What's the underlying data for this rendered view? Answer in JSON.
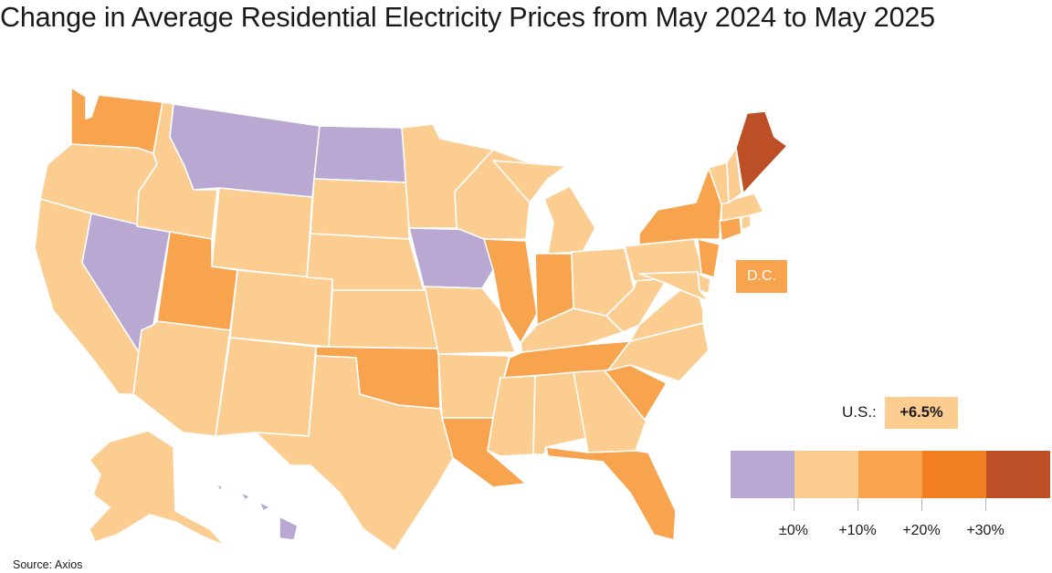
{
  "title": "Change in Average Residential Electricity Prices from May 2024 to May 2025",
  "colors": {
    "decrease": "#b9a8d1",
    "low": "#fccd91",
    "mid": "#f8a44e",
    "high": "#f17f22",
    "top": "#bc4f26"
  },
  "bins": [
    "decrease",
    "low",
    "mid",
    "high",
    "top"
  ],
  "state_bins": {
    "WA": "mid",
    "OR": "low",
    "CA": "low",
    "NV": "decrease",
    "ID": "low",
    "MT": "decrease",
    "WY": "low",
    "UT": "mid",
    "AZ": "low",
    "CO": "low",
    "NM": "low",
    "ND": "decrease",
    "SD": "low",
    "NE": "low",
    "KS": "low",
    "OK": "mid",
    "TX": "low",
    "MN": "low",
    "IA": "decrease",
    "MO": "low",
    "AR": "low",
    "LA": "mid",
    "WI": "low",
    "IL": "mid",
    "MI": "low",
    "IN": "mid",
    "OH": "low",
    "KY": "low",
    "TN": "mid",
    "MS": "low",
    "AL": "low",
    "GA": "low",
    "FL": "mid",
    "SC": "mid",
    "NC": "low",
    "VA": "low",
    "WV": "low",
    "PA": "low",
    "NY": "mid",
    "NJ": "mid",
    "DE": "low",
    "MD": "low",
    "CT": "mid",
    "RI": "low",
    "MA": "low",
    "VT": "low",
    "NH": "low",
    "ME": "top",
    "AK": "low",
    "HI": "decrease",
    "DC": "mid"
  },
  "dc_label": "D.C.",
  "national": {
    "label": "U.S.:",
    "value": "+6.5%",
    "bin": "low"
  },
  "legend": {
    "tick_labels": [
      "±0%",
      "+10%",
      "+20%",
      "+30%"
    ]
  },
  "source": "Source: Axios"
}
